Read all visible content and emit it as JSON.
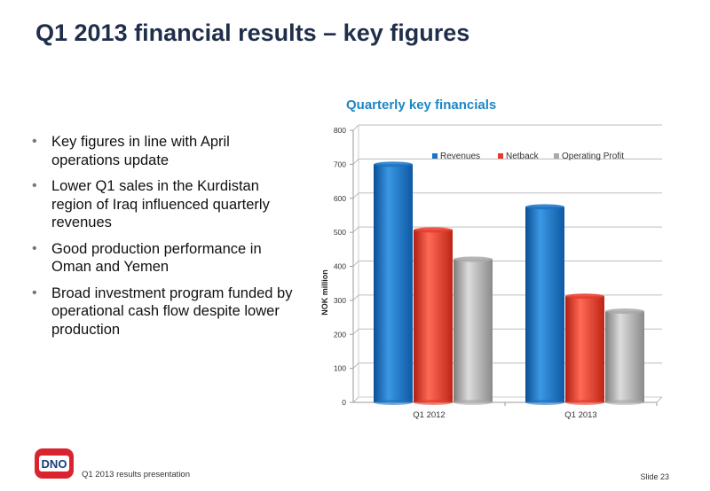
{
  "slide": {
    "title": "Q1 2013 financial results – key figures",
    "bullets": [
      "Key figures in line with April operations update",
      "Lower Q1 sales in the Kurdistan region of Iraq influenced quarterly revenues",
      "Good production performance in Oman and Yemen",
      "Broad investment program funded by operational cash flow despite lower production"
    ]
  },
  "footer": {
    "logo_text": "DNO",
    "presentation": "Q1 2013 results presentation",
    "slide_number": "Slide 23"
  },
  "colors": {
    "title": "#1f2e4a",
    "chart_title": "#1d86c4",
    "revenues": "#1a73c4",
    "netback": "#e8392a",
    "operating_profit": "#a9a9a9",
    "logo": "#d9232e"
  },
  "chart_data": {
    "type": "bar",
    "title": "Quarterly key financials",
    "ylabel": "NOK million",
    "xlabel": "",
    "categories": [
      "Q1 2012",
      "Q1 2013"
    ],
    "ylim": [
      0,
      800
    ],
    "yticks": [
      0,
      100,
      200,
      300,
      400,
      500,
      600,
      700,
      800
    ],
    "grid": true,
    "legend_position": "top-right",
    "series": [
      {
        "name": "Revenues",
        "values": [
          700,
          575
        ],
        "color": "#1a73c4"
      },
      {
        "name": "Netback",
        "values": [
          507,
          312
        ],
        "color": "#e8392a"
      },
      {
        "name": "Operating Profit",
        "values": [
          421,
          268
        ],
        "color": "#a9a9a9"
      }
    ]
  }
}
